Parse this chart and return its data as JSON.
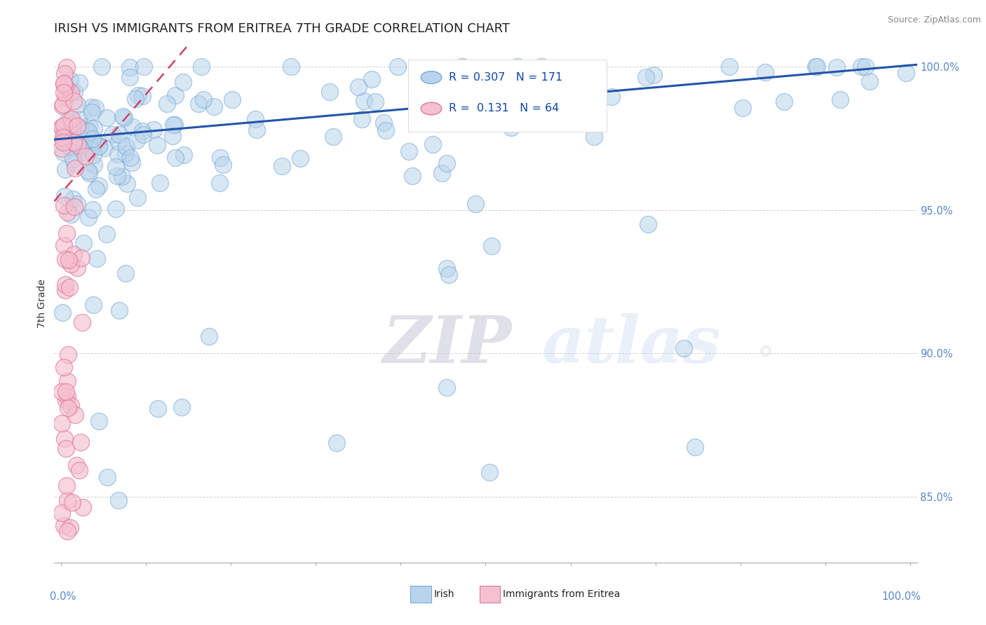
{
  "title": "IRISH VS IMMIGRANTS FROM ERITREA 7TH GRADE CORRELATION CHART",
  "source_text": "Source: ZipAtlas.com",
  "ylabel": "7th Grade",
  "watermark_zip": "ZIP",
  "watermark_atlas": "atlas",
  "watermark_dot": "°",
  "legend": {
    "irish_label": "Irish",
    "eritrea_label": "Immigrants from Eritrea",
    "irish_R": 0.307,
    "irish_N": 171,
    "eritrea_R": 0.131,
    "eritrea_N": 64
  },
  "irish_color": "#b8d4ec",
  "irish_edge_color": "#7aaad4",
  "eritrea_color": "#f5c0d0",
  "eritrea_edge_color": "#e0789a",
  "irish_line_color": "#2255aa",
  "eritrea_line_color": "#cc4466",
  "irish_trend": [
    0.9748,
    1.0005
  ],
  "eritrea_trend": [
    0.9558,
    0.9748
  ],
  "y_tick_positions": [
    0.85,
    0.9,
    0.95,
    1.0
  ],
  "y_tick_labels": [
    "85.0%",
    "90.0%",
    "95.0%",
    "100.0%"
  ],
  "ylim": [
    0.827,
    1.008
  ],
  "xlim": [
    -0.008,
    1.008
  ],
  "background_color": "#ffffff",
  "grid_color": "#cccccc",
  "title_fontsize": 13,
  "tick_color": "#5588cc"
}
